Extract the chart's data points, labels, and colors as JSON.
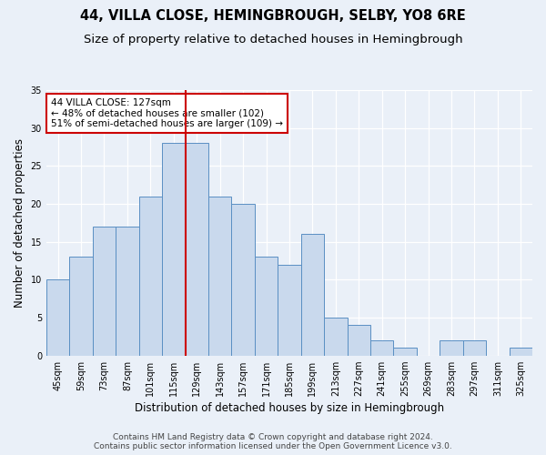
{
  "title": "44, VILLA CLOSE, HEMINGBROUGH, SELBY, YO8 6RE",
  "subtitle": "Size of property relative to detached houses in Hemingbrough",
  "xlabel": "Distribution of detached houses by size in Hemingbrough",
  "ylabel": "Number of detached properties",
  "categories": [
    "45sqm",
    "59sqm",
    "73sqm",
    "87sqm",
    "101sqm",
    "115sqm",
    "129sqm",
    "143sqm",
    "157sqm",
    "171sqm",
    "185sqm",
    "199sqm",
    "213sqm",
    "227sqm",
    "241sqm",
    "255sqm",
    "269sqm",
    "283sqm",
    "297sqm",
    "311sqm",
    "325sqm"
  ],
  "values": [
    10,
    13,
    17,
    17,
    21,
    28,
    28,
    21,
    20,
    13,
    12,
    16,
    5,
    4,
    2,
    1,
    0,
    2,
    2,
    0,
    1
  ],
  "bar_color": "#c9d9ed",
  "bar_edge_color": "#5a8fc3",
  "vline_x": 6.0,
  "vline_color": "#cc0000",
  "annotation_text": "44 VILLA CLOSE: 127sqm\n← 48% of detached houses are smaller (102)\n51% of semi-detached houses are larger (109) →",
  "annotation_box_color": "#ffffff",
  "annotation_box_edge_color": "#cc0000",
  "ylim": [
    0,
    35
  ],
  "yticks": [
    0,
    5,
    10,
    15,
    20,
    25,
    30,
    35
  ],
  "footer_line1": "Contains HM Land Registry data © Crown copyright and database right 2024.",
  "footer_line2": "Contains public sector information licensed under the Open Government Licence v3.0.",
  "background_color": "#eaf0f8",
  "plot_bg_color": "#eaf0f8",
  "grid_color": "#ffffff",
  "title_fontsize": 10.5,
  "subtitle_fontsize": 9.5,
  "label_fontsize": 8.5,
  "tick_fontsize": 7,
  "footer_fontsize": 6.5,
  "annotation_fontsize": 7.5
}
